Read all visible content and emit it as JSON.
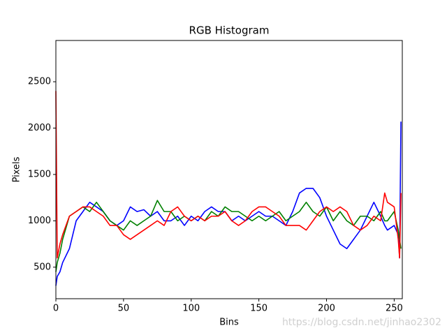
{
  "chart_data": {
    "type": "line",
    "title": "RGB Histogram",
    "x_label": "Bins",
    "y_label": "Pixels",
    "watermark": "https://blog.csdn.net/jinhao2302",
    "x": [
      0,
      1,
      3,
      5,
      10,
      15,
      20,
      25,
      30,
      35,
      40,
      45,
      50,
      55,
      60,
      65,
      70,
      75,
      80,
      85,
      90,
      95,
      100,
      105,
      110,
      115,
      120,
      125,
      130,
      135,
      140,
      145,
      150,
      155,
      160,
      165,
      170,
      175,
      180,
      185,
      190,
      195,
      200,
      205,
      210,
      215,
      220,
      225,
      230,
      235,
      240,
      243,
      245,
      250,
      253,
      254,
      255
    ],
    "series": [
      {
        "color": "#0000ff",
        "values": [
          300,
          400,
          450,
          550,
          700,
          1000,
          1100,
          1200,
          1150,
          1100,
          1000,
          950,
          1000,
          1150,
          1100,
          1120,
          1050,
          1100,
          1000,
          1000,
          1050,
          950,
          1050,
          1000,
          1100,
          1150,
          1100,
          1100,
          1000,
          1050,
          1000,
          1050,
          1100,
          1050,
          1050,
          1000,
          950,
          1100,
          1300,
          1350,
          1350,
          1250,
          1050,
          900,
          750,
          700,
          800,
          900,
          1050,
          1200,
          1050,
          950,
          900,
          950,
          850,
          600,
          2070
        ]
      },
      {
        "color": "#008000",
        "values": [
          450,
          550,
          650,
          800,
          1050,
          1100,
          1150,
          1100,
          1200,
          1100,
          1000,
          950,
          900,
          1000,
          950,
          1000,
          1050,
          1220,
          1100,
          1100,
          1000,
          1050,
          1000,
          1050,
          1000,
          1100,
          1050,
          1150,
          1100,
          1100,
          1050,
          1000,
          1050,
          1000,
          1050,
          1100,
          1000,
          1050,
          1100,
          1200,
          1100,
          1050,
          1150,
          1000,
          1100,
          1000,
          950,
          1050,
          1050,
          1000,
          1100,
          1000,
          1000,
          1100,
          900,
          800,
          700
        ]
      },
      {
        "color": "#ff0000",
        "values": [
          2400,
          600,
          750,
          850,
          1050,
          1100,
          1150,
          1150,
          1100,
          1050,
          950,
          950,
          850,
          800,
          850,
          900,
          950,
          1000,
          950,
          1100,
          1150,
          1050,
          1000,
          1050,
          1000,
          1050,
          1050,
          1100,
          1000,
          950,
          1000,
          1100,
          1150,
          1150,
          1100,
          1050,
          950,
          950,
          950,
          900,
          1000,
          1100,
          1150,
          1100,
          1150,
          1100,
          950,
          900,
          950,
          1050,
          1000,
          1300,
          1200,
          1150,
          800,
          600,
          1300
        ]
      }
    ],
    "xlim": [
      0,
      256
    ],
    "ylim": [
      160,
      2945
    ],
    "xticks": [
      0,
      50,
      100,
      150,
      200,
      250
    ],
    "yticks": [
      500,
      1000,
      1500,
      2000,
      2500
    ]
  }
}
